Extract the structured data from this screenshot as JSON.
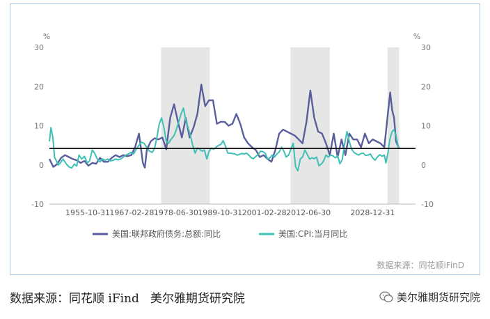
{
  "chart_data": {
    "type": "line",
    "y_unit_left": "%",
    "y_unit_right": "%",
    "ylim": [
      -10,
      30
    ],
    "yticks": [
      -10,
      0,
      10,
      20,
      30
    ],
    "x_range": [
      1946,
      2040
    ],
    "x_tick_labels": [
      "1955-10-31",
      "1967-02-28",
      "1978-06-30",
      "1989-10-31",
      "2001-02-28",
      "2012-06-30",
      "2028-12-31"
    ],
    "x_tick_years": [
      1955.83,
      1967.16,
      1978.5,
      1989.83,
      2001.16,
      2012.5,
      2028.99
    ],
    "reference_line": 4.2,
    "shaded_periods": [
      [
        1974.7,
        1987.2
      ],
      [
        2007.9,
        2018.0
      ],
      [
        2032.8,
        2035.8
      ]
    ],
    "legend_position": "bottom",
    "source_note": "数据来源：同花顺iFinD",
    "series": [
      {
        "name": "美国:联邦政府债务:总额:同比",
        "color": "#5a5e9c",
        "points": [
          [
            1946,
            1.5
          ],
          [
            1947,
            -0.5
          ],
          [
            1948,
            0.2
          ],
          [
            1949,
            1.8
          ],
          [
            1950,
            2.5
          ],
          [
            1951,
            2.0
          ],
          [
            1952,
            1.5
          ],
          [
            1953,
            1.2
          ],
          [
            1954,
            0.5
          ],
          [
            1955,
            1.0
          ],
          [
            1956,
            -0.2
          ],
          [
            1957,
            0.5
          ],
          [
            1958,
            0.3
          ],
          [
            1959,
            1.8
          ],
          [
            1960,
            0.8
          ],
          [
            1961,
            0.8
          ],
          [
            1962,
            1.8
          ],
          [
            1963,
            2.5
          ],
          [
            1964,
            2.0
          ],
          [
            1965,
            2.5
          ],
          [
            1966,
            2.2
          ],
          [
            1967,
            2.5
          ],
          [
            1968,
            4.5
          ],
          [
            1969,
            8.0
          ],
          [
            1970,
            0.5
          ],
          [
            1970.5,
            -0.7
          ],
          [
            1971,
            3.8
          ],
          [
            1972,
            6.0
          ],
          [
            1973,
            6.8
          ],
          [
            1974,
            6.5
          ],
          [
            1975,
            7.0
          ],
          [
            1976,
            4.0
          ],
          [
            1977,
            12.0
          ],
          [
            1978,
            15.5
          ],
          [
            1979,
            11.0
          ],
          [
            1980,
            7.0
          ],
          [
            1981,
            12.0
          ],
          [
            1982,
            7.0
          ],
          [
            1983,
            9.5
          ],
          [
            1984,
            13.0
          ],
          [
            1985,
            20.5
          ],
          [
            1986,
            15.0
          ],
          [
            1987,
            16.5
          ],
          [
            1988,
            16.5
          ],
          [
            1989,
            10.5
          ],
          [
            1990,
            11.0
          ],
          [
            1991,
            11.0
          ],
          [
            1992,
            10.0
          ],
          [
            1993,
            10.5
          ],
          [
            1994,
            13.0
          ],
          [
            1995,
            10.5
          ],
          [
            1996,
            7.0
          ],
          [
            1997,
            5.5
          ],
          [
            1998,
            4.5
          ],
          [
            1999,
            3.8
          ],
          [
            2000,
            2.0
          ],
          [
            2001,
            2.5
          ],
          [
            2002,
            1.5
          ],
          [
            2003,
            0.8
          ],
          [
            2004,
            3.8
          ],
          [
            2005,
            8.0
          ],
          [
            2006,
            9.0
          ],
          [
            2007,
            8.5
          ],
          [
            2008,
            8.0
          ],
          [
            2009,
            7.5
          ],
          [
            2010,
            6.5
          ],
          [
            2011,
            5.5
          ],
          [
            2012,
            11.0
          ],
          [
            2013,
            19.0
          ],
          [
            2014,
            12.0
          ],
          [
            2015,
            8.5
          ],
          [
            2016,
            8.0
          ],
          [
            2017,
            5.5
          ],
          [
            2018,
            2.5
          ],
          [
            2019,
            8.0
          ],
          [
            2020,
            2.0
          ],
          [
            2021,
            6.5
          ],
          [
            2022,
            2.5
          ],
          [
            2023,
            8.0
          ],
          [
            2024,
            6.5
          ],
          [
            2025,
            6.5
          ],
          [
            2026,
            4.5
          ],
          [
            2027,
            8.0
          ],
          [
            2028,
            5.5
          ],
          [
            2029,
            6.5
          ],
          [
            2030,
            6.0
          ],
          [
            2031,
            5.5
          ],
          [
            2032,
            4.5
          ],
          [
            2033,
            14.0
          ],
          [
            2033.5,
            18.5
          ],
          [
            2034,
            14.0
          ],
          [
            2034.5,
            12.0
          ],
          [
            2035,
            6.0
          ],
          [
            2035.8,
            4.2
          ]
        ]
      },
      {
        "name": "美国:CPI:当月同比",
        "color": "#3ec0b4",
        "points": [
          [
            1946,
            6.0
          ],
          [
            1946.4,
            9.5
          ],
          [
            1946.9,
            7.0
          ],
          [
            1947.3,
            2.0
          ],
          [
            1947.8,
            1.0
          ],
          [
            1948.3,
            0.0
          ],
          [
            1948.8,
            0.5
          ],
          [
            1949.5,
            1.5
          ],
          [
            1950.3,
            0.3
          ],
          [
            1951,
            -0.5
          ],
          [
            1951.7,
            -0.8
          ],
          [
            1952.4,
            0.2
          ],
          [
            1953,
            -0.3
          ],
          [
            1953.6,
            2.5
          ],
          [
            1954.3,
            1.5
          ],
          [
            1955,
            2.2
          ],
          [
            1955.7,
            0.5
          ],
          [
            1956.3,
            1.0
          ],
          [
            1957,
            3.8
          ],
          [
            1957.6,
            3.0
          ],
          [
            1958.3,
            1.5
          ],
          [
            1959,
            0.8
          ],
          [
            1959.6,
            1.5
          ],
          [
            1960.3,
            1.2
          ],
          [
            1961,
            1.5
          ],
          [
            1961.7,
            1.0
          ],
          [
            1962.4,
            1.2
          ],
          [
            1963,
            1.5
          ],
          [
            1963.6,
            1.3
          ],
          [
            1964.3,
            1.5
          ],
          [
            1965,
            2.0
          ],
          [
            1965.6,
            2.5
          ],
          [
            1966.3,
            2.8
          ],
          [
            1967,
            3.2
          ],
          [
            1967.6,
            2.8
          ],
          [
            1968.3,
            4.0
          ],
          [
            1969,
            5.0
          ],
          [
            1969.6,
            5.8
          ],
          [
            1970.3,
            5.5
          ],
          [
            1971,
            4.5
          ],
          [
            1971.7,
            3.5
          ],
          [
            1972.4,
            3.2
          ],
          [
            1973,
            4.2
          ],
          [
            1973.6,
            7.0
          ],
          [
            1974.2,
            10.5
          ],
          [
            1974.8,
            12.0
          ],
          [
            1975.4,
            9.5
          ],
          [
            1976,
            6.0
          ],
          [
            1976.6,
            5.5
          ],
          [
            1977.2,
            6.5
          ],
          [
            1978,
            7.5
          ],
          [
            1978.6,
            9.0
          ],
          [
            1979.2,
            11.0
          ],
          [
            1979.8,
            13.0
          ],
          [
            1980.4,
            14.5
          ],
          [
            1981,
            11.5
          ],
          [
            1981.6,
            9.5
          ],
          [
            1982.2,
            7.5
          ],
          [
            1982.8,
            5.0
          ],
          [
            1983.4,
            3.0
          ],
          [
            1984,
            4.3
          ],
          [
            1984.6,
            4.0
          ],
          [
            1985.2,
            3.5
          ],
          [
            1985.8,
            3.8
          ],
          [
            1986.4,
            1.5
          ],
          [
            1987,
            3.5
          ],
          [
            1987.6,
            4.3
          ],
          [
            1988.2,
            4.0
          ],
          [
            1988.8,
            4.5
          ],
          [
            1989.4,
            5.0
          ],
          [
            1990,
            5.2
          ],
          [
            1990.6,
            6.2
          ],
          [
            1991.2,
            4.8
          ],
          [
            1991.8,
            3.0
          ],
          [
            1992.4,
            3.0
          ],
          [
            1993,
            2.9
          ],
          [
            1993.6,
            2.8
          ],
          [
            1994.2,
            2.5
          ],
          [
            1994.8,
            2.7
          ],
          [
            1995.4,
            2.9
          ],
          [
            1996,
            2.8
          ],
          [
            1996.6,
            3.0
          ],
          [
            1997.2,
            2.5
          ],
          [
            1997.8,
            1.8
          ],
          [
            1998.4,
            1.6
          ],
          [
            1999,
            2.2
          ],
          [
            1999.6,
            2.6
          ],
          [
            2000.2,
            3.5
          ],
          [
            2000.8,
            3.4
          ],
          [
            2001.4,
            3.0
          ],
          [
            2002,
            1.5
          ],
          [
            2002.6,
            1.8
          ],
          [
            2003.2,
            2.5
          ],
          [
            2003.8,
            2.0
          ],
          [
            2004.4,
            2.8
          ],
          [
            2005,
            3.3
          ],
          [
            2005.6,
            4.5
          ],
          [
            2006.2,
            3.5
          ],
          [
            2006.8,
            2.0
          ],
          [
            2007.4,
            2.5
          ],
          [
            2008,
            4.0
          ],
          [
            2008.6,
            5.5
          ],
          [
            2009.2,
            -0.5
          ],
          [
            2009.8,
            -1.5
          ],
          [
            2010.4,
            1.5
          ],
          [
            2011,
            2.0
          ],
          [
            2011.6,
            3.8
          ],
          [
            2012.2,
            2.7
          ],
          [
            2012.8,
            1.5
          ],
          [
            2013.4,
            1.8
          ],
          [
            2014,
            1.6
          ],
          [
            2014.6,
            2.0
          ],
          [
            2015.2,
            -0.2
          ],
          [
            2015.8,
            0.2
          ],
          [
            2016.4,
            1.0
          ],
          [
            2017,
            2.5
          ],
          [
            2017.6,
            2.0
          ],
          [
            2018.2,
            2.5
          ],
          [
            2018.8,
            2.3
          ],
          [
            2019.4,
            1.8
          ],
          [
            2020,
            2.3
          ],
          [
            2020.6,
            0.3
          ],
          [
            2021.2,
            1.4
          ],
          [
            2021.8,
            5.4
          ],
          [
            2022.4,
            8.5
          ],
          [
            2023,
            6.0
          ],
          [
            2023.6,
            4.0
          ],
          [
            2024.2,
            3.2
          ],
          [
            2024.8,
            2.8
          ],
          [
            2025.4,
            2.5
          ],
          [
            2026,
            2.9
          ],
          [
            2026.6,
            3.0
          ],
          [
            2027.2,
            2.4
          ],
          [
            2027.8,
            2.5
          ],
          [
            2028.4,
            2.8
          ],
          [
            2029,
            1.8
          ],
          [
            2029.6,
            1.2
          ],
          [
            2030.2,
            2.0
          ],
          [
            2030.8,
            2.6
          ],
          [
            2031.4,
            2.2
          ],
          [
            2032,
            2.5
          ],
          [
            2032.4,
            0.5
          ],
          [
            2032.9,
            3.0
          ],
          [
            2033.4,
            6.5
          ],
          [
            2034,
            8.5
          ],
          [
            2034.5,
            9.0
          ],
          [
            2035,
            7.5
          ],
          [
            2035.5,
            5.0
          ],
          [
            2035.8,
            4.2
          ]
        ]
      }
    ]
  },
  "caption": {
    "source": "数据来源：同花顺 iFind",
    "org": "美尔雅期货研究院"
  },
  "watermark": {
    "icon": "wechat-icon",
    "text": "美尔雅期货研究院"
  }
}
